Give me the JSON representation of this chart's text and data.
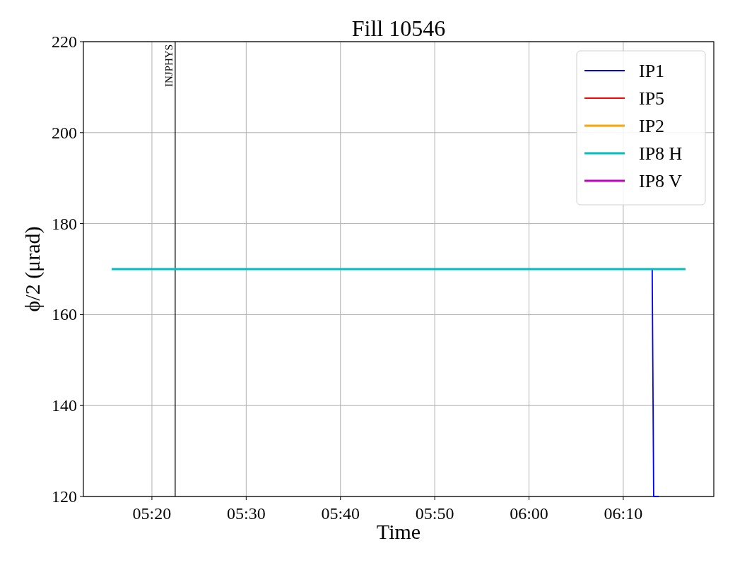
{
  "chart_data": {
    "type": "line",
    "title": "Fill 10546",
    "xlabel": "Time",
    "ylabel": "ϕ/2 (μrad)",
    "xlim": [
      5.2122,
      6.3267
    ],
    "xticks": [
      {
        "value": 5.33333,
        "label": "05:20"
      },
      {
        "value": 5.5,
        "label": "05:30"
      },
      {
        "value": 5.66667,
        "label": "05:40"
      },
      {
        "value": 5.83333,
        "label": "05:50"
      },
      {
        "value": 6.0,
        "label": "06:00"
      },
      {
        "value": 6.16667,
        "label": "06:10"
      }
    ],
    "ylim": [
      120,
      220
    ],
    "yticks": [
      120,
      140,
      160,
      180,
      200,
      220
    ],
    "grid": true,
    "legend": "top right",
    "line_style": "solid",
    "series": [
      {
        "name": "IP1",
        "color": "#0000ff",
        "x": [
          6.2178,
          6.2204,
          6.2292
        ],
        "values": [
          170,
          120,
          120
        ]
      },
      {
        "name": "IP5",
        "color": "#ff0000"
      },
      {
        "name": "IP2",
        "color": "#ffa500"
      },
      {
        "name": "IP8 H",
        "color": "#00bfbf",
        "x": [
          5.2622,
          6.2767
        ],
        "values": [
          170,
          170
        ]
      },
      {
        "name": "IP8 V",
        "color": "#bf00bf"
      }
    ],
    "ref_lines": [
      {
        "axis": "x",
        "value": 5.3745,
        "label": "INJPHYS",
        "color": "#000000"
      }
    ]
  }
}
